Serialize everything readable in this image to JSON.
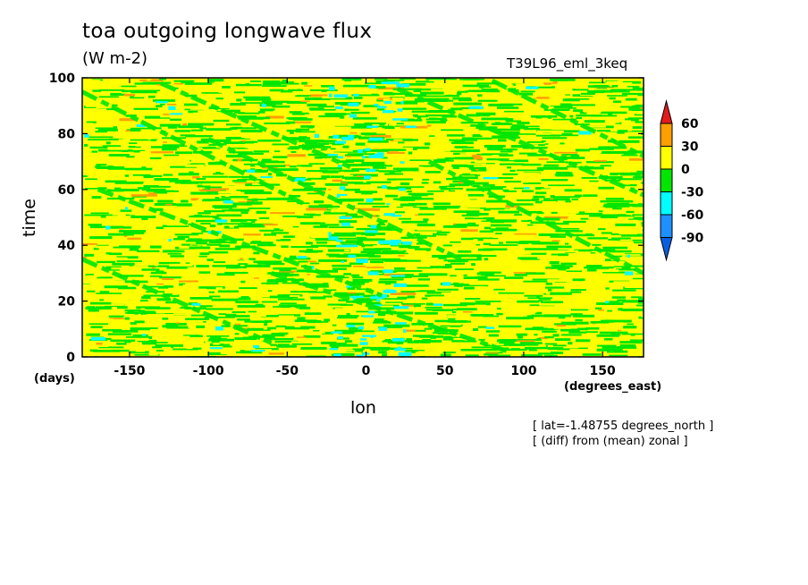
{
  "chart_data": {
    "type": "heatmap",
    "title": "toa outgoing longwave flux",
    "units": "(W m-2)",
    "case_label": "T39L96_eml_3keq",
    "xlabel": "lon",
    "xunits": "(degrees_east)",
    "ylabel": "time",
    "yunits": "(days)",
    "xlim": [
      -180,
      176
    ],
    "ylim": [
      0,
      100
    ],
    "xticks": [
      "-150",
      "-100",
      "-50",
      "0",
      "50",
      "100",
      "150"
    ],
    "xtick_values": [
      -150,
      -100,
      -50,
      0,
      50,
      100,
      150
    ],
    "yticks": [
      "0",
      "20",
      "40",
      "60",
      "80",
      "100"
    ],
    "ytick_values": [
      0,
      20,
      40,
      60,
      80,
      100
    ],
    "notes": [
      "[ lat=-1.48755 degrees_north ]",
      "[ (diff) from (mean) zonal ]"
    ],
    "colorbar": {
      "levels": [
        "60",
        "30",
        "0",
        "-30",
        "-60",
        "-90"
      ],
      "colors": [
        "#e31a1c",
        "#ff9f00",
        "#ffff00",
        "#00e600",
        "#00ffff",
        "#1e90ff",
        "#0a5fe0"
      ],
      "extend": "both"
    },
    "grid": false
  }
}
